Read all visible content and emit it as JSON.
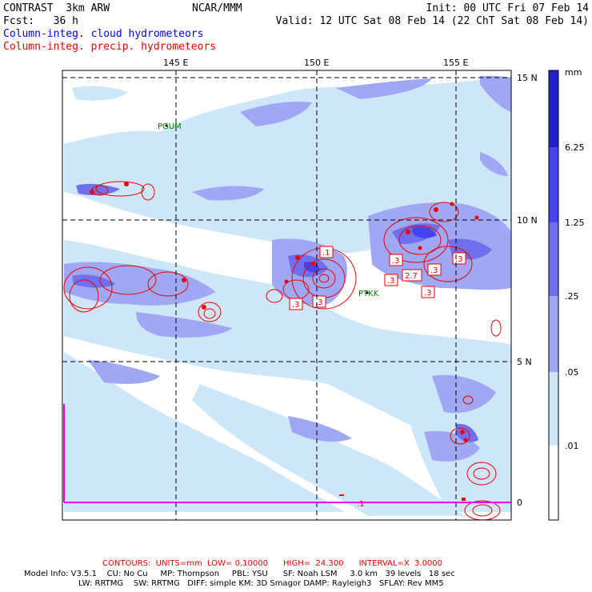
{
  "header": {
    "title": "CONTRAST  3km ARW",
    "center": "NCAR/MMM",
    "init": "Init: 00 UTC Fri 07 Feb 14",
    "fcst": "Fcst:   36 h",
    "valid": "Valid: 12 UTC Sat 08 Feb 14 (22 ChT Sat 08 Feb 14)",
    "field1": "Column-integ. cloud hydrometeors",
    "field2": "Column-integ. precip. hydrometeors"
  },
  "map": {
    "lon_labels": [
      "145 E",
      "150 E",
      "155 E"
    ],
    "lat_labels": [
      "15 N",
      "10 N",
      "5 N",
      "0"
    ],
    "stations": [
      "PGUM",
      "PTKK"
    ],
    "contour_labels": [
      ".1",
      ".3",
      ".3",
      ".3",
      ".3",
      ".3",
      "2.7",
      ".3",
      ".3",
      ".1"
    ]
  },
  "colorbar": {
    "unit": "mm",
    "levels": [
      "6.25",
      "1.25",
      ".25",
      ".05",
      ".01"
    ],
    "colors": [
      "#2222cc",
      "#4444ee",
      "#7070ee",
      "#a0a8f4",
      "#cde6f8",
      "#ffffff"
    ]
  },
  "footer": {
    "contours": "CONTOURS:  UNITS=mm  LOW= 0.10000      HIGH=  24.300      INTERVAL=X  3.0000",
    "model_line1": "Model Info: V3.5.1    CU: No Cu     MP: Thompson     PBL: YSU      SF: Noah LSM     3.0 km   39 levels   18 sec",
    "model_line2": "LW: RRTMG    SW: RRTMG   DIFF: simple KM: 3D Smagor DAMP: Rayleigh3   SFLAY: Rev MM5"
  }
}
